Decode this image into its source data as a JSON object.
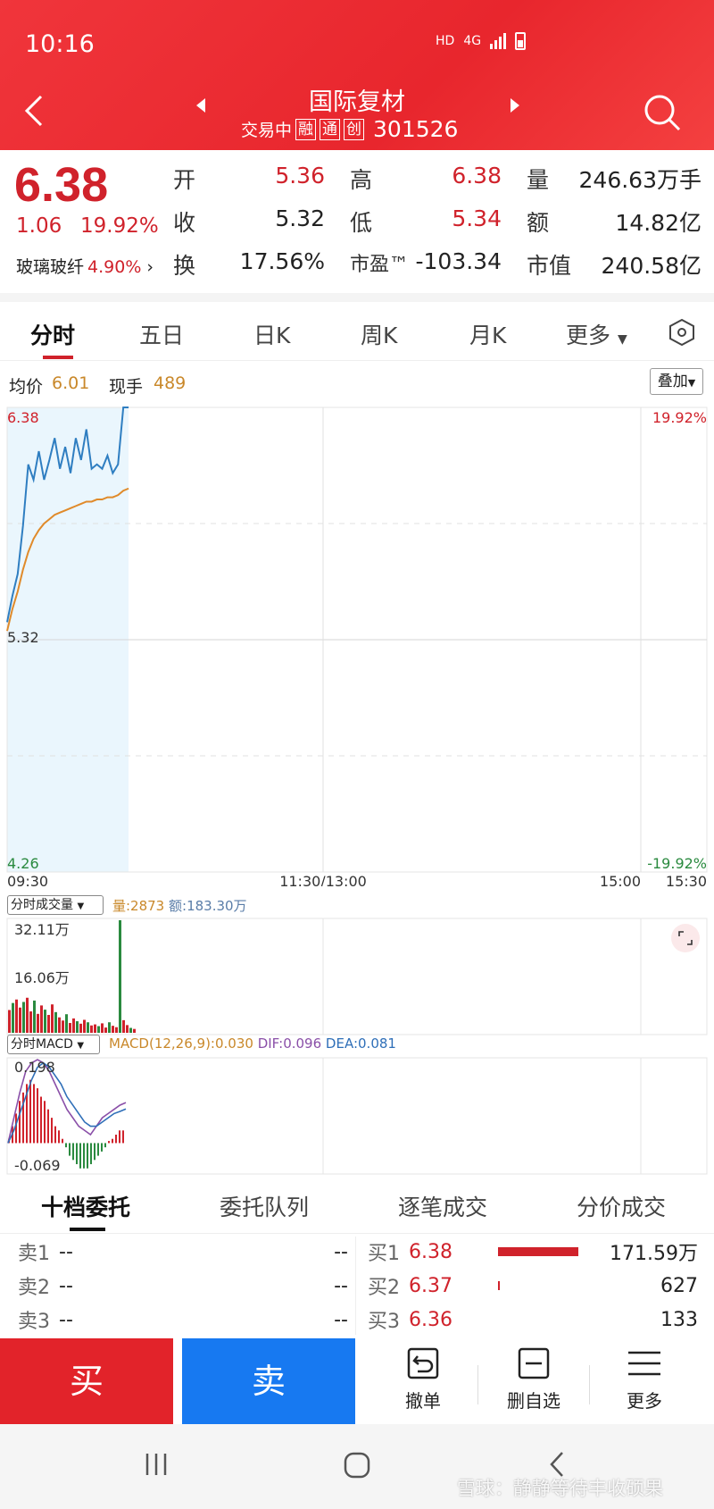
{
  "status": {
    "time": "10:16",
    "hd": "HD",
    "net": "4G"
  },
  "header": {
    "stock_name": "国际复材",
    "status_text": "交易中",
    "tags": [
      "融",
      "通",
      "创"
    ],
    "code": "301526"
  },
  "quote": {
    "price": "6.38",
    "change": "1.06",
    "change_pct": "19.92%",
    "sector": "玻璃玻纤",
    "sector_pct": "4.90%",
    "open_label": "开",
    "open": "5.36",
    "prev_label": "收",
    "prev": "5.32",
    "turnover_label": "换",
    "turnover": "17.56%",
    "high_label": "高",
    "high": "6.38",
    "low_label": "低",
    "low": "5.34",
    "pe_label": "市盈™",
    "pe": "-103.34",
    "vol_label": "量",
    "vol": "246.63万手",
    "amt_label": "额",
    "amt": "14.82亿",
    "mcap_label": "市值",
    "mcap": "240.58亿"
  },
  "chart_tabs": [
    "分时",
    "五日",
    "日K",
    "周K",
    "月K",
    "更多"
  ],
  "avg": {
    "avg_label": "均价",
    "avg_value": "6.01",
    "now_label": "现手",
    "now_value": "489",
    "overlay_label": "叠加"
  },
  "colors": {
    "red": "#d0222b",
    "blue_line": "#2f7ec1",
    "orange_line": "#e08a2a",
    "green": "#2a8a3f",
    "sell_blue": "#1779f1"
  },
  "chart_data": [
    {
      "type": "line",
      "title": "",
      "y_left_ticks": [
        "6.38",
        "5.32",
        "4.26"
      ],
      "y_right_ticks": [
        "19.92%",
        "-19.92%"
      ],
      "x_ticks": [
        "09:30",
        "11:30/13:00",
        "15:00",
        "15:30"
      ],
      "ylim": [
        4.26,
        6.38
      ],
      "x_minutes": [
        0,
        2,
        4,
        6,
        8,
        10,
        12,
        14,
        16,
        18,
        20,
        22,
        24,
        26,
        28,
        30,
        32,
        34,
        36,
        38,
        40,
        42,
        44,
        46
      ],
      "series": [
        {
          "values": [
            5.4,
            5.52,
            5.62,
            5.84,
            6.12,
            6.05,
            6.18,
            6.05,
            6.14,
            6.24,
            6.1,
            6.2,
            6.08,
            6.24,
            6.14,
            6.28,
            6.1,
            6.12,
            6.1,
            6.16,
            6.08,
            6.12,
            6.38,
            6.38
          ]
        },
        {
          "values": [
            5.36,
            5.46,
            5.54,
            5.64,
            5.72,
            5.78,
            5.82,
            5.85,
            5.87,
            5.89,
            5.9,
            5.91,
            5.92,
            5.93,
            5.94,
            5.95,
            5.95,
            5.96,
            5.96,
            5.97,
            5.97,
            5.98,
            6.0,
            6.01
          ]
        }
      ]
    },
    {
      "type": "bar",
      "title": "分时成交量",
      "legend": {
        "vol_label": "量:2873",
        "amt_label": "额:183.30万"
      },
      "y_ticks": [
        "32.11万",
        "16.06万"
      ],
      "ylim": [
        0,
        32.11
      ],
      "values": [
        6.5,
        8.5,
        9.5,
        7.2,
        8.8,
        10.0,
        6.1,
        9.2,
        5.4,
        7.8,
        6.6,
        5.1,
        8.1,
        5.9,
        4.4,
        3.5,
        5.3,
        2.8,
        4.1,
        3.3,
        2.6,
        3.7,
        3.0,
        2.1,
        2.4,
        1.9,
        2.7,
        1.5,
        3.0,
        2.0,
        1.6,
        32.11,
        3.6,
        2.2,
        1.4,
        1.1
      ]
    },
    {
      "type": "bar",
      "title": "分时MACD",
      "legend": {
        "macd": "MACD(12,26,9):0.030",
        "dif": "DIF:0.096",
        "dea": "DEA:0.081"
      },
      "y_ticks": [
        "0.198",
        "-0.069"
      ],
      "ylim": [
        -0.069,
        0.198
      ],
      "hist": [
        0.01,
        0.04,
        0.07,
        0.1,
        0.12,
        0.14,
        0.15,
        0.14,
        0.13,
        0.11,
        0.1,
        0.08,
        0.06,
        0.04,
        0.03,
        0.01,
        -0.01,
        -0.03,
        -0.04,
        -0.05,
        -0.06,
        -0.06,
        -0.06,
        -0.05,
        -0.04,
        -0.03,
        -0.02,
        -0.01,
        0.005,
        0.01,
        0.02,
        0.03,
        0.03
      ],
      "dif": [
        0.0,
        0.06,
        0.12,
        0.17,
        0.19,
        0.198,
        0.19,
        0.17,
        0.14,
        0.11,
        0.08,
        0.06,
        0.04,
        0.03,
        0.02,
        0.04,
        0.06,
        0.07,
        0.08,
        0.09,
        0.096
      ],
      "dea": [
        0.0,
        0.03,
        0.07,
        0.11,
        0.15,
        0.18,
        0.19,
        0.18,
        0.16,
        0.14,
        0.11,
        0.09,
        0.07,
        0.05,
        0.04,
        0.04,
        0.05,
        0.06,
        0.07,
        0.075,
        0.081
      ]
    }
  ],
  "orderbook": {
    "tabs": [
      "十档委托",
      "委托队列",
      "逐笔成交",
      "分价成交"
    ],
    "sell": [
      {
        "label": "卖1",
        "price": "--",
        "vol": "--"
      },
      {
        "label": "卖2",
        "price": "--",
        "vol": "--"
      },
      {
        "label": "卖3",
        "price": "--",
        "vol": "--"
      }
    ],
    "buy": [
      {
        "label": "买1",
        "price": "6.38",
        "vol": "171.59万",
        "share": 1.0
      },
      {
        "label": "买2",
        "price": "6.37",
        "vol": "627",
        "share": 0.02
      },
      {
        "label": "买3",
        "price": "6.36",
        "vol": "133",
        "share": 0.0
      }
    ]
  },
  "trade": {
    "buy": "买",
    "sell": "卖",
    "cancel": "撤单",
    "remove_fav": "删自选",
    "more": "更多"
  },
  "watermark": "雪球：静静等待丰收硕果"
}
